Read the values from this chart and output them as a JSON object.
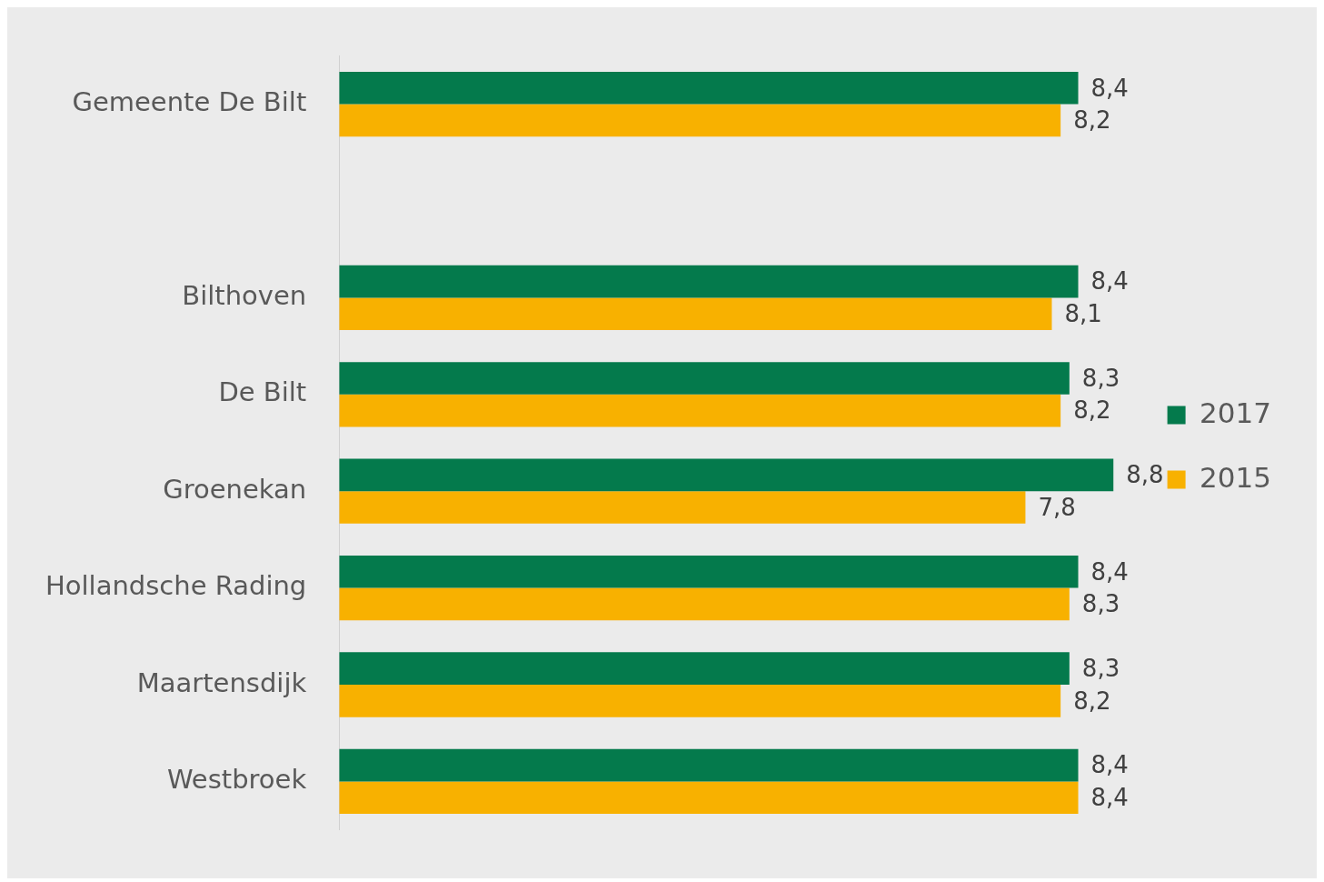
{
  "chart_data": {
    "type": "bar",
    "orientation": "horizontal",
    "categories": [
      "Gemeente De Bilt",
      null,
      "Bilthoven",
      "De Bilt",
      "Groenekan",
      "Hollandsche Rading",
      "Maartensdijk",
      "Westbroek"
    ],
    "series": [
      {
        "name": "2017",
        "color": "#047a4c",
        "values": [
          8.4,
          null,
          8.4,
          8.3,
          8.8,
          8.4,
          8.3,
          8.4
        ],
        "value_labels": [
          "8,4",
          null,
          "8,4",
          "8,3",
          "8,8",
          "8,4",
          "8,3",
          "8,4"
        ]
      },
      {
        "name": "2015",
        "color": "#f8b100",
        "values": [
          8.2,
          null,
          8.1,
          8.2,
          7.8,
          8.3,
          8.2,
          8.4
        ],
        "value_labels": [
          "8,2",
          null,
          "8,1",
          "8,2",
          "7,8",
          "8,3",
          "8,2",
          "8,4"
        ]
      }
    ],
    "grid": false,
    "legend": "right",
    "tick_labels": "y"
  }
}
